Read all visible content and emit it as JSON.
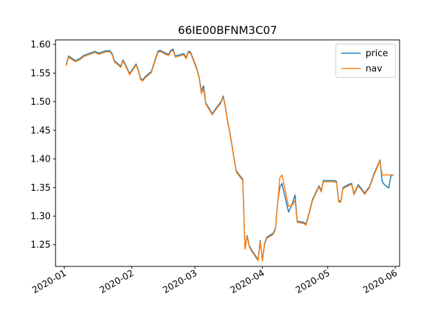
{
  "chart_data": {
    "type": "line",
    "title": "66IE00BFNM3C07",
    "xlabel": "",
    "ylabel": "",
    "x_type": "date",
    "xlim": [
      "2019-12-28",
      "2020-06-03"
    ],
    "ylim": [
      1.212,
      1.608
    ],
    "x_ticks": [
      "2020-01",
      "2020-02",
      "2020-03",
      "2020-04",
      "2020-05",
      "2020-06"
    ],
    "x_tick_dates": [
      "2020-01-01",
      "2020-02-01",
      "2020-03-01",
      "2020-04-01",
      "2020-05-01",
      "2020-06-01"
    ],
    "y_ticks": [
      "1.25",
      "1.30",
      "1.35",
      "1.40",
      "1.45",
      "1.50",
      "1.55",
      "1.60"
    ],
    "y_tick_values": [
      1.25,
      1.3,
      1.35,
      1.4,
      1.45,
      1.5,
      1.55,
      1.6
    ],
    "grid": false,
    "legend_position": "top-right",
    "series": [
      {
        "name": "price",
        "color": "#1f77b4",
        "points": [
          [
            "2020-01-02",
            1.566
          ],
          [
            "2020-01-03",
            1.58
          ],
          [
            "2020-01-06",
            1.572
          ],
          [
            "2020-01-08",
            1.575
          ],
          [
            "2020-01-10",
            1.581
          ],
          [
            "2020-01-13",
            1.585
          ],
          [
            "2020-01-15",
            1.588
          ],
          [
            "2020-01-17",
            1.585
          ],
          [
            "2020-01-20",
            1.589
          ],
          [
            "2020-01-22",
            1.589
          ],
          [
            "2020-01-23",
            1.584
          ],
          [
            "2020-01-24",
            1.572
          ],
          [
            "2020-01-27",
            1.562
          ],
          [
            "2020-01-28",
            1.573
          ],
          [
            "2020-01-29",
            1.566
          ],
          [
            "2020-01-30",
            1.558
          ],
          [
            "2020-01-31",
            1.549
          ],
          [
            "2020-02-03",
            1.566
          ],
          [
            "2020-02-04",
            1.556
          ],
          [
            "2020-02-05",
            1.541
          ],
          [
            "2020-02-06",
            1.538
          ],
          [
            "2020-02-07",
            1.543
          ],
          [
            "2020-02-10",
            1.553
          ],
          [
            "2020-02-13",
            1.588
          ],
          [
            "2020-02-14",
            1.59
          ],
          [
            "2020-02-17",
            1.584
          ],
          [
            "2020-02-18",
            1.583
          ],
          [
            "2020-02-19",
            1.59
          ],
          [
            "2020-02-20",
            1.592
          ],
          [
            "2020-02-21",
            1.58
          ],
          [
            "2020-02-24",
            1.583
          ],
          [
            "2020-02-25",
            1.584
          ],
          [
            "2020-02-26",
            1.577
          ],
          [
            "2020-02-27",
            1.588
          ],
          [
            "2020-02-28",
            1.587
          ],
          [
            "2020-03-02",
            1.557
          ],
          [
            "2020-03-03",
            1.542
          ],
          [
            "2020-03-04",
            1.519
          ],
          [
            "2020-03-05",
            1.528
          ],
          [
            "2020-03-06",
            1.498
          ],
          [
            "2020-03-09",
            1.479
          ],
          [
            "2020-03-10",
            1.485
          ],
          [
            "2020-03-13",
            1.5
          ],
          [
            "2020-03-14",
            1.51
          ],
          [
            "2020-03-15",
            1.492
          ],
          [
            "2020-03-16",
            1.467
          ],
          [
            "2020-03-17",
            1.448
          ],
          [
            "2020-03-18",
            1.425
          ],
          [
            "2020-03-19",
            1.401
          ],
          [
            "2020-03-20",
            1.379
          ],
          [
            "2020-03-23",
            1.364
          ],
          [
            "2020-03-24",
            1.244
          ],
          [
            "2020-03-25",
            1.266
          ],
          [
            "2020-03-26",
            1.248
          ],
          [
            "2020-03-27",
            1.241
          ],
          [
            "2020-03-30",
            1.224
          ],
          [
            "2020-03-31",
            1.257
          ],
          [
            "2020-04-01",
            1.223
          ],
          [
            "2020-04-02",
            1.252
          ],
          [
            "2020-04-03",
            1.263
          ],
          [
            "2020-04-06",
            1.27
          ],
          [
            "2020-04-07",
            1.279
          ],
          [
            "2020-04-08",
            1.323
          ],
          [
            "2020-04-09",
            1.351
          ],
          [
            "2020-04-10",
            1.357
          ],
          [
            "2020-04-13",
            1.307
          ],
          [
            "2020-04-14",
            1.315
          ],
          [
            "2020-04-15",
            1.325
          ],
          [
            "2020-04-16",
            1.337
          ],
          [
            "2020-04-17",
            1.291
          ],
          [
            "2020-04-20",
            1.289
          ],
          [
            "2020-04-21",
            1.286
          ],
          [
            "2020-04-22",
            1.299
          ],
          [
            "2020-04-23",
            1.314
          ],
          [
            "2020-04-24",
            1.329
          ],
          [
            "2020-04-27",
            1.353
          ],
          [
            "2020-04-28",
            1.344
          ],
          [
            "2020-04-29",
            1.362
          ],
          [
            "2020-05-01",
            1.362
          ],
          [
            "2020-05-04",
            1.362
          ],
          [
            "2020-05-05",
            1.361
          ],
          [
            "2020-05-06",
            1.327
          ],
          [
            "2020-05-07",
            1.326
          ],
          [
            "2020-05-08",
            1.35
          ],
          [
            "2020-05-11",
            1.356
          ],
          [
            "2020-05-12",
            1.357
          ],
          [
            "2020-05-13",
            1.339
          ],
          [
            "2020-05-14",
            1.347
          ],
          [
            "2020-05-15",
            1.355
          ],
          [
            "2020-05-18",
            1.34
          ],
          [
            "2020-05-19",
            1.346
          ],
          [
            "2020-05-20",
            1.35
          ],
          [
            "2020-05-21",
            1.36
          ],
          [
            "2020-05-22",
            1.372
          ],
          [
            "2020-05-25",
            1.398
          ],
          [
            "2020-05-26",
            1.361
          ],
          [
            "2020-05-27",
            1.355
          ],
          [
            "2020-05-28",
            1.352
          ],
          [
            "2020-05-29",
            1.349
          ],
          [
            "2020-05-30",
            1.37
          ],
          [
            "2020-05-31",
            1.372
          ]
        ]
      },
      {
        "name": "nav",
        "color": "#ff7f0e",
        "points": [
          [
            "2020-01-02",
            1.564
          ],
          [
            "2020-01-03",
            1.578
          ],
          [
            "2020-01-06",
            1.57
          ],
          [
            "2020-01-08",
            1.573
          ],
          [
            "2020-01-10",
            1.579
          ],
          [
            "2020-01-13",
            1.583
          ],
          [
            "2020-01-15",
            1.586
          ],
          [
            "2020-01-17",
            1.583
          ],
          [
            "2020-01-20",
            1.587
          ],
          [
            "2020-01-22",
            1.587
          ],
          [
            "2020-01-23",
            1.582
          ],
          [
            "2020-01-24",
            1.57
          ],
          [
            "2020-01-27",
            1.56
          ],
          [
            "2020-01-28",
            1.571
          ],
          [
            "2020-01-29",
            1.564
          ],
          [
            "2020-01-30",
            1.556
          ],
          [
            "2020-01-31",
            1.547
          ],
          [
            "2020-02-03",
            1.564
          ],
          [
            "2020-02-04",
            1.554
          ],
          [
            "2020-02-05",
            1.539
          ],
          [
            "2020-02-06",
            1.536
          ],
          [
            "2020-02-07",
            1.541
          ],
          [
            "2020-02-10",
            1.551
          ],
          [
            "2020-02-13",
            1.586
          ],
          [
            "2020-02-14",
            1.588
          ],
          [
            "2020-02-17",
            1.582
          ],
          [
            "2020-02-18",
            1.581
          ],
          [
            "2020-02-19",
            1.588
          ],
          [
            "2020-02-20",
            1.59
          ],
          [
            "2020-02-21",
            1.578
          ],
          [
            "2020-02-24",
            1.581
          ],
          [
            "2020-02-25",
            1.582
          ],
          [
            "2020-02-26",
            1.575
          ],
          [
            "2020-02-27",
            1.586
          ],
          [
            "2020-02-28",
            1.585
          ],
          [
            "2020-03-02",
            1.555
          ],
          [
            "2020-03-03",
            1.54
          ],
          [
            "2020-03-04",
            1.514
          ],
          [
            "2020-03-05",
            1.522
          ],
          [
            "2020-03-06",
            1.496
          ],
          [
            "2020-03-09",
            1.477
          ],
          [
            "2020-03-10",
            1.483
          ],
          [
            "2020-03-13",
            1.498
          ],
          [
            "2020-03-14",
            1.508
          ],
          [
            "2020-03-15",
            1.49
          ],
          [
            "2020-03-16",
            1.465
          ],
          [
            "2020-03-17",
            1.446
          ],
          [
            "2020-03-18",
            1.423
          ],
          [
            "2020-03-19",
            1.399
          ],
          [
            "2020-03-20",
            1.377
          ],
          [
            "2020-03-23",
            1.362
          ],
          [
            "2020-03-24",
            1.242
          ],
          [
            "2020-03-25",
            1.264
          ],
          [
            "2020-03-26",
            1.246
          ],
          [
            "2020-03-27",
            1.239
          ],
          [
            "2020-03-30",
            1.222
          ],
          [
            "2020-03-31",
            1.255
          ],
          [
            "2020-04-01",
            1.221
          ],
          [
            "2020-04-02",
            1.25
          ],
          [
            "2020-04-03",
            1.261
          ],
          [
            "2020-04-06",
            1.268
          ],
          [
            "2020-04-07",
            1.277
          ],
          [
            "2020-04-08",
            1.321
          ],
          [
            "2020-04-09",
            1.367
          ],
          [
            "2020-04-10",
            1.372
          ],
          [
            "2020-04-13",
            1.317
          ],
          [
            "2020-04-14",
            1.318
          ],
          [
            "2020-04-15",
            1.32
          ],
          [
            "2020-04-16",
            1.328
          ],
          [
            "2020-04-17",
            1.289
          ],
          [
            "2020-04-20",
            1.287
          ],
          [
            "2020-04-21",
            1.284
          ],
          [
            "2020-04-22",
            1.297
          ],
          [
            "2020-04-23",
            1.312
          ],
          [
            "2020-04-24",
            1.327
          ],
          [
            "2020-04-27",
            1.351
          ],
          [
            "2020-04-28",
            1.342
          ],
          [
            "2020-04-29",
            1.36
          ],
          [
            "2020-05-01",
            1.36
          ],
          [
            "2020-05-04",
            1.36
          ],
          [
            "2020-05-05",
            1.359
          ],
          [
            "2020-05-06",
            1.325
          ],
          [
            "2020-05-07",
            1.324
          ],
          [
            "2020-05-08",
            1.348
          ],
          [
            "2020-05-11",
            1.354
          ],
          [
            "2020-05-12",
            1.355
          ],
          [
            "2020-05-13",
            1.337
          ],
          [
            "2020-05-14",
            1.345
          ],
          [
            "2020-05-15",
            1.353
          ],
          [
            "2020-05-18",
            1.338
          ],
          [
            "2020-05-19",
            1.344
          ],
          [
            "2020-05-20",
            1.348
          ],
          [
            "2020-05-21",
            1.358
          ],
          [
            "2020-05-22",
            1.37
          ],
          [
            "2020-05-25",
            1.396
          ],
          [
            "2020-05-26",
            1.372
          ],
          [
            "2020-05-27",
            1.372
          ],
          [
            "2020-05-28",
            1.372
          ],
          [
            "2020-05-29",
            1.372
          ],
          [
            "2020-05-30",
            1.372
          ],
          [
            "2020-05-31",
            1.372
          ]
        ]
      }
    ]
  }
}
